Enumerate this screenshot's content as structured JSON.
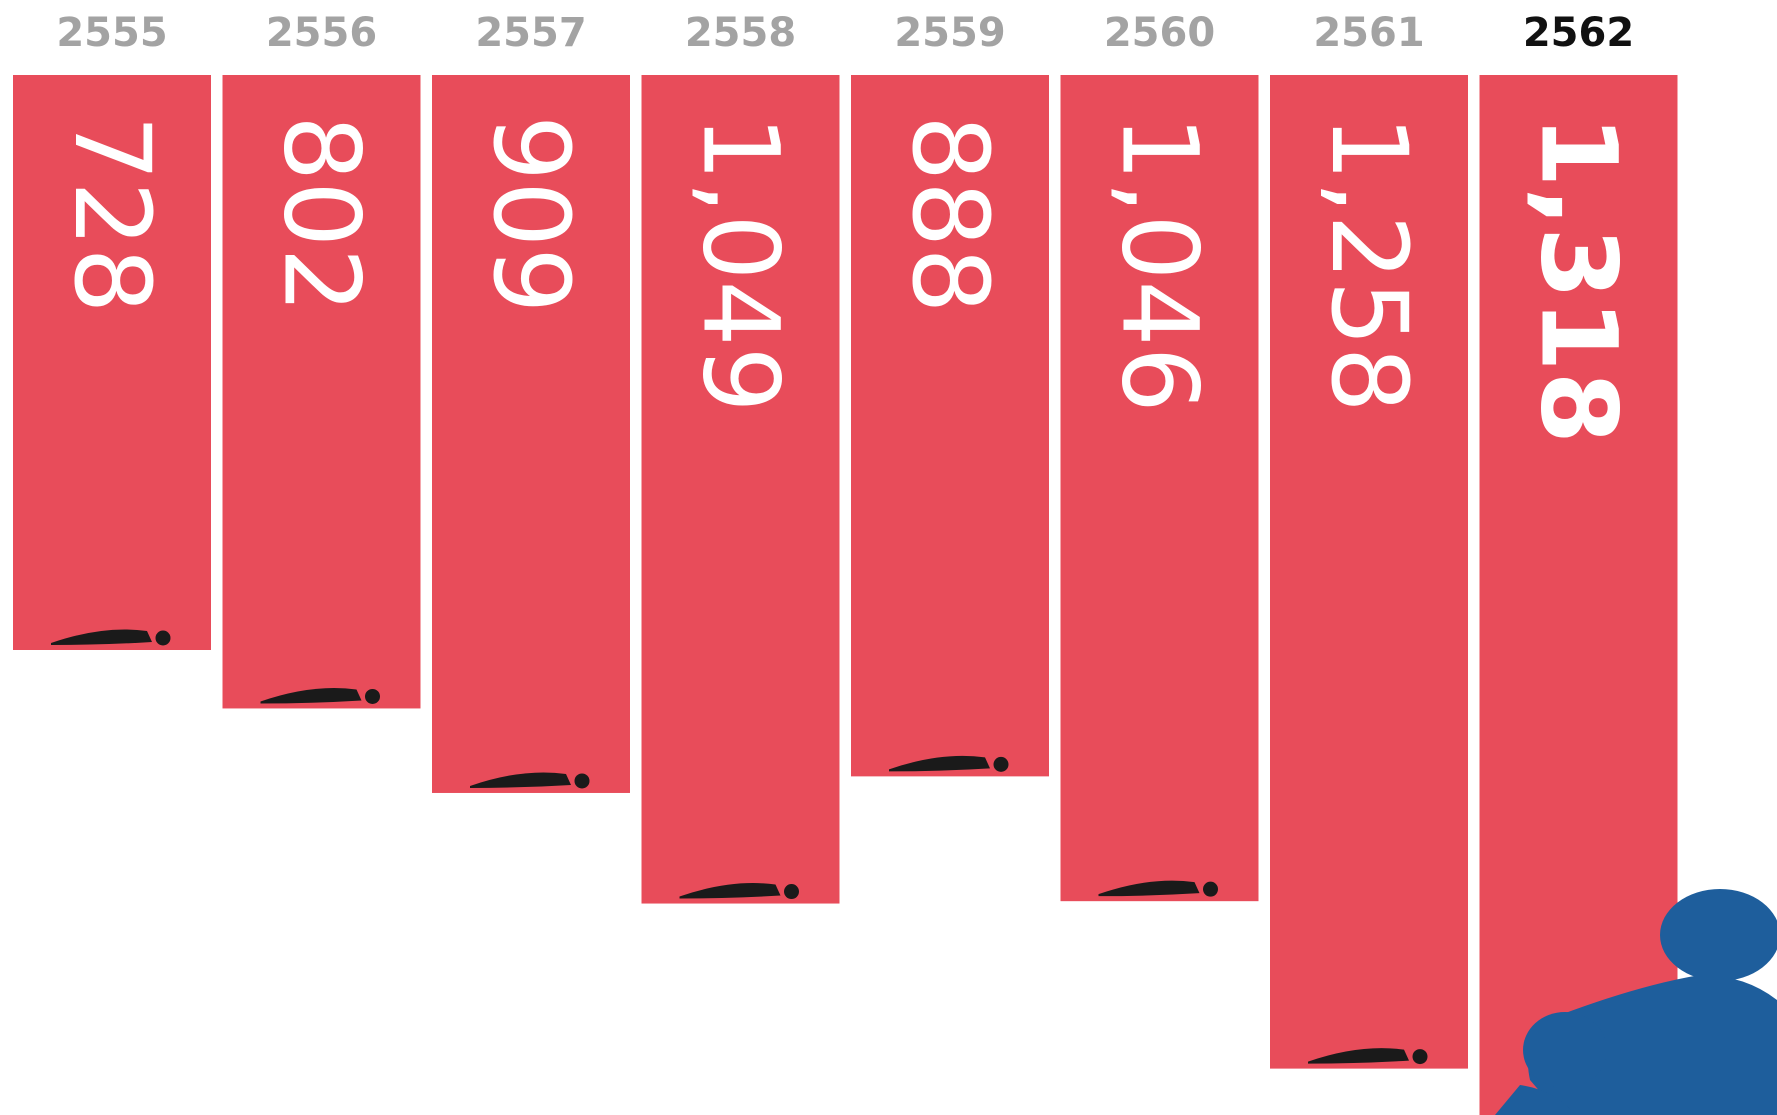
{
  "chart_data": {
    "type": "bar",
    "categories": [
      "2555",
      "2556",
      "2557",
      "2558",
      "2559",
      "2560",
      "2561",
      "2562"
    ],
    "values": [
      728,
      802,
      909,
      1049,
      888,
      1046,
      1258,
      1318
    ],
    "value_labels": [
      "728",
      "802",
      "909",
      "1,049",
      "888",
      "1,046",
      "1,258",
      "1,318"
    ],
    "highlight_category": "2562",
    "orientation": "bars hang downward from the top",
    "ylim": [
      0,
      1318
    ],
    "grid": false,
    "legend": "none",
    "title": "",
    "xlabel": "",
    "ylabel": ""
  },
  "colors": {
    "bar": "#E84C5A",
    "label_muted": "#A3A3A3",
    "label_highlight": "#111111",
    "value_text": "#FFFFFF",
    "figure_icon": "#1A1A1A",
    "baby_icon": "#1E5E9C"
  },
  "icons": {
    "bar_marker": "lying-person-icon",
    "decoration": "crawling-baby-icon"
  }
}
